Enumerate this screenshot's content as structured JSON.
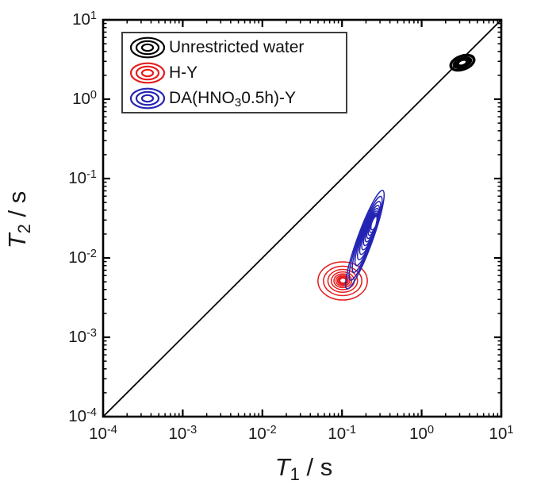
{
  "figure": {
    "background": "#ffffff",
    "axis_color": "#000000",
    "x_axis": {
      "label_symbol": "T",
      "label_sub": "1",
      "label_rest": " / s",
      "tick_base": "10",
      "tick_exponents": [
        "-4",
        "-3",
        "-2",
        "-1",
        "0",
        "1"
      ],
      "log_range": [
        -4,
        1
      ]
    },
    "y_axis": {
      "label_symbol": "T",
      "label_sub": "2",
      "label_rest": " / s",
      "tick_base": "10",
      "tick_exponents": [
        "-4",
        "-3",
        "-2",
        "-1",
        "0",
        "1"
      ],
      "log_range": [
        -4,
        1
      ]
    }
  },
  "legend": {
    "border_color": "#3d3d3d",
    "entries": [
      {
        "label_pre": "Unrestricted water",
        "label_sub": "",
        "label_post": "",
        "color": "#000000"
      },
      {
        "label_pre": "H-Y",
        "label_sub": "",
        "label_post": "",
        "color": "#e61c1c"
      },
      {
        "label_pre": "DA(HNO",
        "label_sub": "3",
        "label_post": "0.5h)-Y",
        "color": "#2424b4"
      }
    ]
  },
  "chart_data": {
    "type": "contour",
    "title": "",
    "xlabel": "T1 / s",
    "ylabel": "T2 / s",
    "x_scale": "log",
    "y_scale": "log",
    "xlim": [
      0.0001,
      10
    ],
    "ylim": [
      0.0001,
      10
    ],
    "grid": false,
    "legend_position": "upper-left",
    "reference_line": {
      "label": "T2 = T1 diagonal",
      "from_log": [
        -4,
        -4
      ],
      "to_log": [
        1,
        1
      ],
      "color": "#000000"
    },
    "series": [
      {
        "name": "Unrestricted water",
        "color": "#000000",
        "style": "filled",
        "peak": {
          "T1_s": 3.2,
          "T2_s": 2.9
        },
        "center_log": [
          0.512,
          0.46
        ],
        "half_width_dec": [
          0.16,
          0.09
        ],
        "tilt_deg": -20
      },
      {
        "name": "H-Y",
        "color": "#e61c1c",
        "style": "rings",
        "rings": 9,
        "peak": {
          "T1_s": 0.102,
          "T2_s": 0.0051
        },
        "outer_center_log": [
          -0.992,
          -2.29
        ],
        "inner_center_log": [
          -0.988,
          -2.285
        ],
        "half_width_dec": [
          0.31,
          0.24
        ],
        "inner_frac": [
          0.13,
          0.13
        ],
        "tilt_deg": 0
      },
      {
        "name": "DA(HNO3 0.5h)-Y",
        "color": "#2424b4",
        "style": "rings",
        "rings": 13,
        "peak": {
          "T1_s": 0.25,
          "T2_s": 0.027
        },
        "ridge_log_ends": [
          [
            -0.98,
            -2.4
          ],
          [
            -0.49,
            -1.15
          ]
        ],
        "outer_center_log": [
          -0.713,
          -1.77
        ],
        "inner_center_log": [
          -0.594,
          -1.56
        ],
        "half_width_dec": [
          0.095,
          0.66
        ],
        "inner_frac": [
          0.33,
          0.14
        ],
        "tilt_deg": 20
      }
    ]
  }
}
